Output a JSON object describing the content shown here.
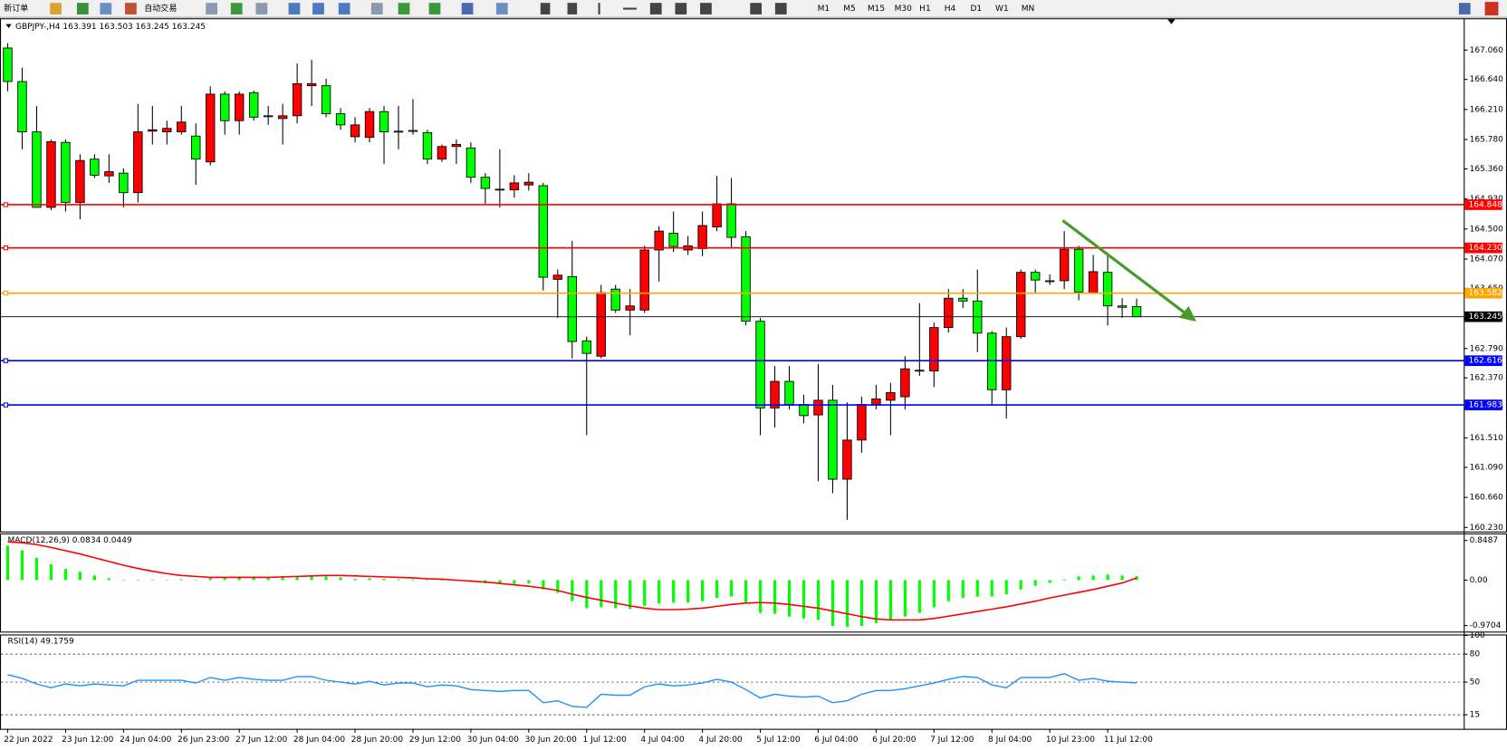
{
  "toolbar": {
    "buttons": [
      "新订单",
      "自动交易"
    ],
    "timeframes": [
      "M1",
      "M5",
      "M15",
      "M30",
      "H1",
      "H4",
      "D1",
      "W1",
      "MN"
    ]
  },
  "chart_data": [
    {
      "type": "candlestick",
      "title": "GBPJPY-,H4 163.391 163.503 163.245 163.245",
      "up_color": "#ff0000",
      "down_color": "#00ff00",
      "categories": [
        "22 Jun 2022",
        null,
        null,
        null,
        "23 Jun 12:00",
        null,
        null,
        null,
        "24 Jun 04:00",
        null,
        null,
        null,
        "26 Jun 23:00",
        null,
        null,
        null,
        "27 Jun 12:00",
        null,
        null,
        null,
        "28 Jun 04:00",
        null,
        null,
        null,
        "28 Jun 20:00",
        null,
        null,
        null,
        "29 Jun 12:00",
        null,
        null,
        null,
        "30 Jun 04:00",
        null,
        null,
        null,
        "30 Jun 20:00",
        null,
        null,
        null,
        "1 Jul 12:00",
        null,
        null,
        null,
        "4 Jul 04:00",
        null,
        null,
        null,
        "4 Jul 20:00",
        null,
        null,
        null,
        "5 Jul 12:00",
        null,
        null,
        null,
        "6 Jul 04:00",
        null,
        null,
        null,
        "6 Jul 20:00",
        null,
        null,
        null,
        "7 Jul 12:00",
        null,
        null,
        null,
        "8 Jul 04:00",
        null,
        null,
        null,
        "10 Jul 23:00",
        null,
        null,
        null,
        "11 Jul 12:00",
        null,
        null
      ],
      "open": [
        167.09,
        166.61,
        165.89,
        164.81,
        165.74,
        164.88,
        165.5,
        165.26,
        165.3,
        165.02,
        165.9,
        165.89,
        165.89,
        165.83,
        165.46,
        166.43,
        166.05,
        166.45,
        166.12,
        166.08,
        166.12,
        166.55,
        166.55,
        166.15,
        165.82,
        165.81,
        166.18,
        165.9,
        165.91,
        165.88,
        165.5,
        165.68,
        165.66,
        165.24,
        165.07,
        165.06,
        165.13,
        165.12,
        163.78,
        163.82,
        162.9,
        162.68,
        163.64,
        163.34,
        163.34,
        164.2,
        164.44,
        164.2,
        164.22,
        164.53,
        164.86,
        164.39,
        163.18,
        161.94,
        162.32,
        161.99,
        161.84,
        162.05,
        160.92,
        161.48,
        161.99,
        162.05,
        162.1,
        162.48,
        162.47,
        163.09,
        163.51,
        163.47,
        163.01,
        162.2,
        162.96,
        163.88,
        163.76,
        163.76,
        164.21,
        163.58,
        163.88,
        163.4,
        163.391
      ],
      "high": [
        167.16,
        166.81,
        166.26,
        165.78,
        165.78,
        165.57,
        165.57,
        165.57,
        165.37,
        166.29,
        166.26,
        166.05,
        166.26,
        166.01,
        166.54,
        166.47,
        166.47,
        166.48,
        166.26,
        166.29,
        166.87,
        166.92,
        166.65,
        166.23,
        166.1,
        166.23,
        166.26,
        166.26,
        166.36,
        165.92,
        165.71,
        165.78,
        165.74,
        165.3,
        165.64,
        165.27,
        165.3,
        165.16,
        163.92,
        164.33,
        162.96,
        163.7,
        163.7,
        163.64,
        164.26,
        164.54,
        164.75,
        164.4,
        164.75,
        165.26,
        165.23,
        164.47,
        163.23,
        162.54,
        162.54,
        162.13,
        162.57,
        162.27,
        162.02,
        162.1,
        162.27,
        162.3,
        162.68,
        163.44,
        163.16,
        163.64,
        163.64,
        163.92,
        163.04,
        163.09,
        163.92,
        163.92,
        163.85,
        164.47,
        164.26,
        164.13,
        164.13,
        163.51,
        163.503
      ],
      "low": [
        166.47,
        165.64,
        164.81,
        164.77,
        164.75,
        164.64,
        165.23,
        165.16,
        164.81,
        164.88,
        165.71,
        165.71,
        165.85,
        165.13,
        165.41,
        165.85,
        165.85,
        166.05,
        165.99,
        165.71,
        166.01,
        166.26,
        166.1,
        165.92,
        165.74,
        165.74,
        165.43,
        165.64,
        165.85,
        165.43,
        165.46,
        165.43,
        165.16,
        164.86,
        164.81,
        164.95,
        165.05,
        163.62,
        163.23,
        162.65,
        161.55,
        162.65,
        163.3,
        162.98,
        163.3,
        163.75,
        164.17,
        164.13,
        164.11,
        164.47,
        164.24,
        163.12,
        161.55,
        161.66,
        161.92,
        161.72,
        160.89,
        160.72,
        160.34,
        161.3,
        161.92,
        161.55,
        161.92,
        162.4,
        162.24,
        163.02,
        163.37,
        162.74,
        161.99,
        161.79,
        162.93,
        163.58,
        163.7,
        163.64,
        163.48,
        163.58,
        163.12,
        163.23,
        163.245
      ],
      "close": [
        166.61,
        165.89,
        164.81,
        165.75,
        164.88,
        165.48,
        165.27,
        165.32,
        165.02,
        165.89,
        165.92,
        165.94,
        166.03,
        165.5,
        166.43,
        166.05,
        166.43,
        166.1,
        166.11,
        166.12,
        166.58,
        166.58,
        166.15,
        165.99,
        165.99,
        166.18,
        165.89,
        165.89,
        165.9,
        165.5,
        165.68,
        165.71,
        165.24,
        165.08,
        165.06,
        165.16,
        165.17,
        163.81,
        163.84,
        162.89,
        162.72,
        163.59,
        163.34,
        163.4,
        164.2,
        164.47,
        164.25,
        164.26,
        164.55,
        164.86,
        164.38,
        163.18,
        161.94,
        162.32,
        161.99,
        161.83,
        162.05,
        160.92,
        161.48,
        161.99,
        162.07,
        162.16,
        162.5,
        162.47,
        163.09,
        163.51,
        163.47,
        163.01,
        162.2,
        162.96,
        163.88,
        163.77,
        163.75,
        164.21,
        163.6,
        163.89,
        163.4,
        163.38,
        163.245
      ],
      "ylim": [
        160.173,
        167.501
      ],
      "yticks": [
        {
          "value": 167.06,
          "label": "167.060"
        },
        {
          "value": 166.64,
          "label": "166.640"
        },
        {
          "value": 166.21,
          "label": "166.210"
        },
        {
          "value": 165.78,
          "label": "165.780"
        },
        {
          "value": 165.36,
          "label": "165.360"
        },
        {
          "value": 164.93,
          "label": "164.930"
        },
        {
          "value": 164.5,
          "label": "164.500"
        },
        {
          "value": 164.07,
          "label": "164.070"
        },
        {
          "value": 163.65,
          "label": "163.650"
        },
        {
          "value": 163.22,
          "label": "163.220"
        },
        {
          "value": 162.79,
          "label": "162.790"
        },
        {
          "value": 162.37,
          "label": "162.370"
        },
        {
          "value": 161.94,
          "label": "161.940"
        },
        {
          "value": 161.51,
          "label": "161.510"
        },
        {
          "value": 161.09,
          "label": "161.090"
        },
        {
          "value": 160.66,
          "label": "160.660"
        },
        {
          "value": 160.23,
          "label": "160.230"
        }
      ],
      "levels": [
        {
          "value": 164.848,
          "color": "#ff0000"
        },
        {
          "value": 164.23,
          "label": "164.230",
          "color": "#ff0000"
        },
        {
          "value": 163.582,
          "color": "#ffa500"
        },
        {
          "value": 163.245,
          "color": "#000000"
        },
        {
          "value": 162.616,
          "color": "#0000ff"
        },
        {
          "value": 161.983,
          "color": "#0000ff"
        }
      ]
    },
    {
      "type": "macd",
      "title": "MACD(12,26,9) 0.0834 0.0449",
      "ylim": [
        -1.1,
        0.98
      ],
      "yticks": [
        0.8487,
        {
          "value": 0,
          "label": "0.00"
        },
        -0.9704
      ],
      "main": {
        "color": "#00ff00",
        "values": [
          0.74,
          0.64,
          0.48,
          0.34,
          0.24,
          0.18,
          0.1,
          0.04,
          0.0,
          -0.01,
          -0.01,
          0.0,
          0.02,
          0.01,
          0.05,
          0.06,
          0.08,
          0.08,
          0.07,
          0.06,
          0.09,
          0.1,
          0.08,
          0.06,
          0.03,
          0.04,
          0.03,
          0.02,
          0.02,
          0.0,
          -0.01,
          -0.01,
          -0.04,
          -0.07,
          -0.08,
          -0.08,
          -0.07,
          -0.2,
          -0.27,
          -0.45,
          -0.6,
          -0.58,
          -0.6,
          -0.62,
          -0.55,
          -0.5,
          -0.48,
          -0.48,
          -0.45,
          -0.38,
          -0.35,
          -0.48,
          -0.7,
          -0.72,
          -0.78,
          -0.82,
          -0.85,
          -0.98,
          -1.0,
          -0.98,
          -0.92,
          -0.85,
          -0.78,
          -0.7,
          -0.58,
          -0.45,
          -0.38,
          -0.35,
          -0.35,
          -0.3,
          -0.2,
          -0.12,
          -0.06,
          0.02,
          0.08,
          0.1,
          0.12,
          0.1,
          0.0834
        ]
      },
      "signal": {
        "color": "#ff0000",
        "values": [
          0.82,
          0.8,
          0.76,
          0.7,
          0.63,
          0.56,
          0.48,
          0.4,
          0.32,
          0.25,
          0.19,
          0.14,
          0.1,
          0.08,
          0.06,
          0.06,
          0.06,
          0.06,
          0.06,
          0.07,
          0.08,
          0.09,
          0.1,
          0.1,
          0.09,
          0.08,
          0.07,
          0.06,
          0.05,
          0.03,
          0.02,
          0.0,
          -0.02,
          -0.04,
          -0.07,
          -0.1,
          -0.13,
          -0.17,
          -0.22,
          -0.3,
          -0.37,
          -0.43,
          -0.49,
          -0.55,
          -0.6,
          -0.63,
          -0.63,
          -0.62,
          -0.6,
          -0.56,
          -0.52,
          -0.49,
          -0.48,
          -0.49,
          -0.52,
          -0.56,
          -0.6,
          -0.66,
          -0.72,
          -0.78,
          -0.83,
          -0.85,
          -0.85,
          -0.85,
          -0.82,
          -0.77,
          -0.72,
          -0.67,
          -0.62,
          -0.57,
          -0.51,
          -0.45,
          -0.38,
          -0.32,
          -0.26,
          -0.2,
          -0.13,
          -0.06,
          0.0449
        ]
      }
    },
    {
      "type": "line",
      "title": "RSI(14) 49.1759",
      "ylim": [
        0,
        100
      ],
      "yticks": [
        100,
        80,
        50,
        15
      ],
      "color": "#1e90ff",
      "values": [
        58,
        54,
        48,
        44,
        48,
        46,
        48,
        47,
        46,
        52,
        52,
        52,
        52,
        49,
        55,
        52,
        55,
        53,
        52,
        52,
        56,
        56,
        52,
        50,
        48,
        51,
        47,
        49,
        49,
        45,
        47,
        46,
        42,
        41,
        40,
        41,
        41,
        28,
        30,
        24,
        23,
        37,
        36,
        36,
        45,
        48,
        46,
        47,
        49,
        53,
        50,
        42,
        33,
        37,
        35,
        34,
        35,
        28,
        30,
        37,
        41,
        41,
        43,
        46,
        49,
        53,
        56,
        55,
        47,
        44,
        55,
        55,
        55,
        59,
        52,
        54,
        51,
        50,
        49.1759
      ]
    }
  ]
}
